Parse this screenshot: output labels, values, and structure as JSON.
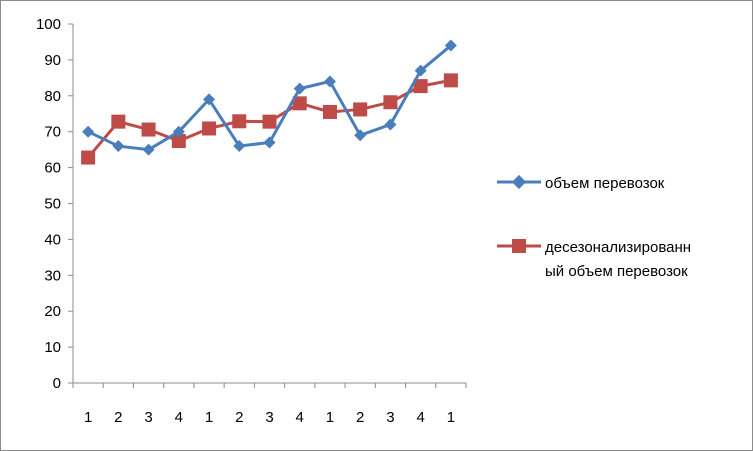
{
  "chart_data": {
    "type": "line",
    "categories": [
      "1",
      "2",
      "3",
      "4",
      "1",
      "2",
      "3",
      "4",
      "1",
      "2",
      "3",
      "4",
      "1"
    ],
    "ylim": [
      0,
      100
    ],
    "y_ticks": [
      "0",
      "10",
      "20",
      "30",
      "40",
      "50",
      "60",
      "70",
      "80",
      "90",
      "100"
    ],
    "grid": false,
    "legend_position": "right",
    "series": [
      {
        "name": "объем перевозок",
        "color": "#4a7ebb",
        "marker": "diamond",
        "values": [
          70,
          66,
          65,
          70,
          79,
          66,
          67,
          82,
          84,
          69,
          72,
          87,
          94
        ]
      },
      {
        "name": "десезонализированный объем перевозок",
        "legend_lines": [
          "десезонализированн",
          "ый объем перевозок"
        ],
        "color": "#be4b48",
        "marker": "square",
        "values": [
          62.8,
          72.8,
          70.6,
          67.4,
          70.9,
          72.9,
          72.8,
          77.9,
          75.5,
          76.2,
          78.2,
          82.7,
          84.3
        ]
      }
    ]
  }
}
